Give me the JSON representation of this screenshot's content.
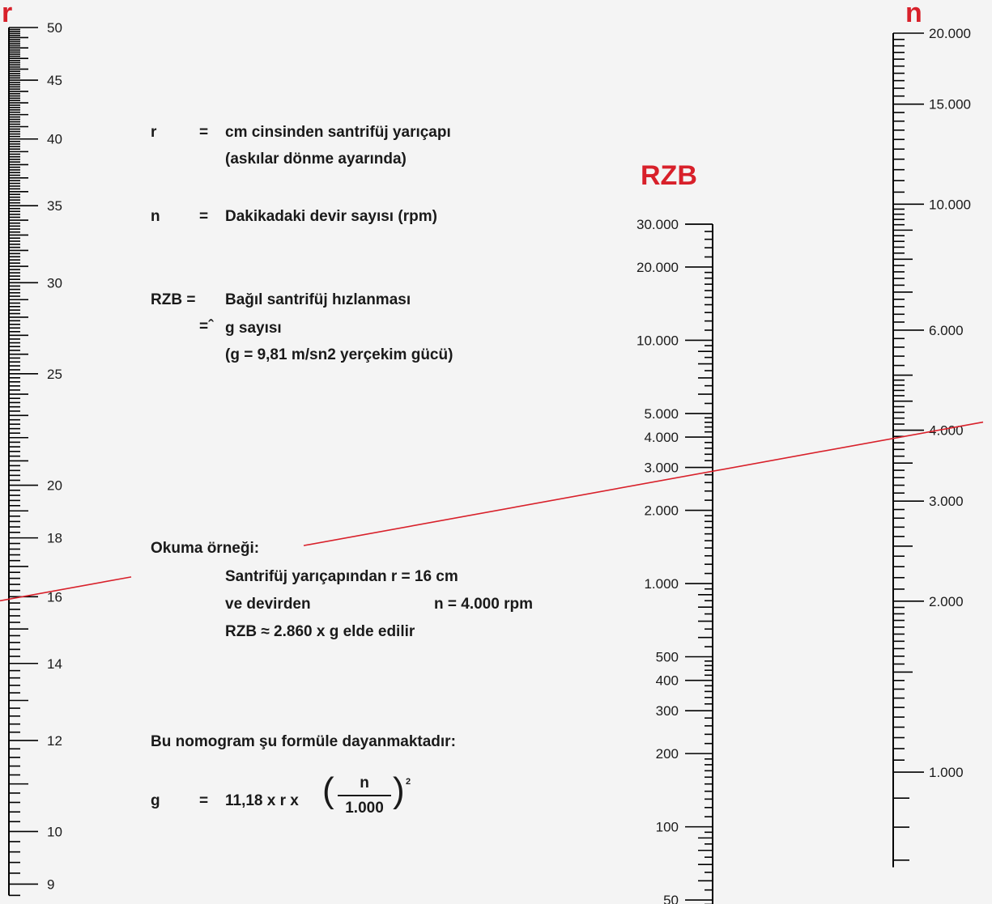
{
  "axes": {
    "r": {
      "title": "r",
      "labels": [
        {
          "v": 50,
          "t": "50"
        },
        {
          "v": 45,
          "t": "45"
        },
        {
          "v": 40,
          "t": "40"
        },
        {
          "v": 35,
          "t": "35"
        },
        {
          "v": 30,
          "t": "30"
        },
        {
          "v": 25,
          "t": "25"
        },
        {
          "v": 20,
          "t": "20"
        },
        {
          "v": 18,
          "t": "18"
        },
        {
          "v": 16,
          "t": "16"
        },
        {
          "v": 14,
          "t": "14"
        },
        {
          "v": 12,
          "t": "12"
        },
        {
          "v": 10,
          "t": "10"
        },
        {
          "v": 9,
          "t": "9"
        }
      ]
    },
    "rzb": {
      "title": "RZB",
      "labels": [
        {
          "v": 30000,
          "t": "30.000"
        },
        {
          "v": 20000,
          "t": "20.000"
        },
        {
          "v": 10000,
          "t": "10.000"
        },
        {
          "v": 5000,
          "t": "5.000"
        },
        {
          "v": 4000,
          "t": "4.000"
        },
        {
          "v": 3000,
          "t": "3.000"
        },
        {
          "v": 2000,
          "t": "2.000"
        },
        {
          "v": 1000,
          "t": "1.000"
        },
        {
          "v": 500,
          "t": "500"
        },
        {
          "v": 400,
          "t": "400"
        },
        {
          "v": 300,
          "t": "300"
        },
        {
          "v": 200,
          "t": "200"
        },
        {
          "v": 100,
          "t": "100"
        },
        {
          "v": 50,
          "t": "50"
        }
      ]
    },
    "n": {
      "title": "n",
      "labels": [
        {
          "v": 20000,
          "t": "20.000"
        },
        {
          "v": 15000,
          "t": "15.000"
        },
        {
          "v": 10000,
          "t": "10.000"
        },
        {
          "v": 6000,
          "t": "6.000"
        },
        {
          "v": 4000,
          "t": "4.000"
        },
        {
          "v": 3000,
          "t": "3.000"
        },
        {
          "v": 2000,
          "t": "2.000"
        },
        {
          "v": 1000,
          "t": "1.000"
        }
      ]
    }
  },
  "example_line": {
    "r": 16,
    "n": 4000,
    "rzb": 2860,
    "color": "#d8202a"
  },
  "legend": {
    "r_sym": "r",
    "r_eq": "=",
    "r_desc": "cm cinsinden santrifüj yarıçapı",
    "r_desc2": "(askılar dönme ayarında)",
    "n_sym": "n",
    "n_eq": "=",
    "n_desc": "Dakikadaki devir sayısı (rpm)",
    "rzb_sym": "RZB =",
    "rzb_desc": "Bağıl santrifüj hızlanması",
    "rzb_eq2": "=ˆ",
    "rzb_desc2": "g sayısı",
    "rzb_desc3": "(g = 9,81 m/sn2 yerçekim gücü)"
  },
  "example": {
    "heading": "Okuma örneği:",
    "line1": "Santrifüj yarıçapından r = 16 cm",
    "line2a": "ve devirden",
    "line2b": "n = 4.000 rpm",
    "line3": "RZB ≈ 2.860 x g elde edilir"
  },
  "formula": {
    "intro": "Bu nomogram şu formüle dayanmaktadır:",
    "sym": "g",
    "eq": "=",
    "body": "11,18 x r x",
    "lparen": "(",
    "num": "n",
    "den": "1.000",
    "rparen": ")",
    "exp": "2"
  },
  "colors": {
    "accent": "#d8202a",
    "ink": "#1a1a1a",
    "background": "#f4f4f4"
  }
}
